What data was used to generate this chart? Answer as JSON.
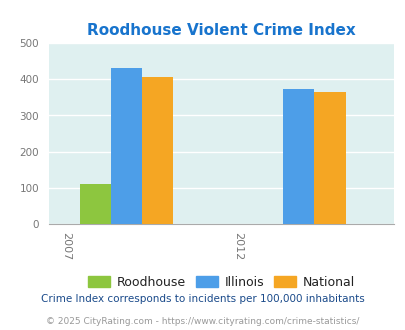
{
  "title": "Roodhouse Violent Crime Index",
  "title_color": "#1874CD",
  "years": [
    "2007",
    "2012"
  ],
  "roodhouse": [
    110,
    0
  ],
  "illinois": [
    432,
    372
  ],
  "national": [
    407,
    365
  ],
  "roodhouse_color": "#8DC63F",
  "illinois_color": "#4D9EE8",
  "national_color": "#F5A623",
  "ylim": [
    0,
    500
  ],
  "yticks": [
    0,
    100,
    200,
    300,
    400,
    500
  ],
  "plot_bg_color": "#DFF0F0",
  "footer1": "Crime Index corresponds to incidents per 100,000 inhabitants",
  "footer2": "© 2025 CityRating.com - https://www.cityrating.com/crime-statistics/",
  "footer1_color": "#1A4A8A",
  "footer2_color": "#999999",
  "legend_labels": [
    "Roodhouse",
    "Illinois",
    "National"
  ],
  "bar_width": 0.18
}
